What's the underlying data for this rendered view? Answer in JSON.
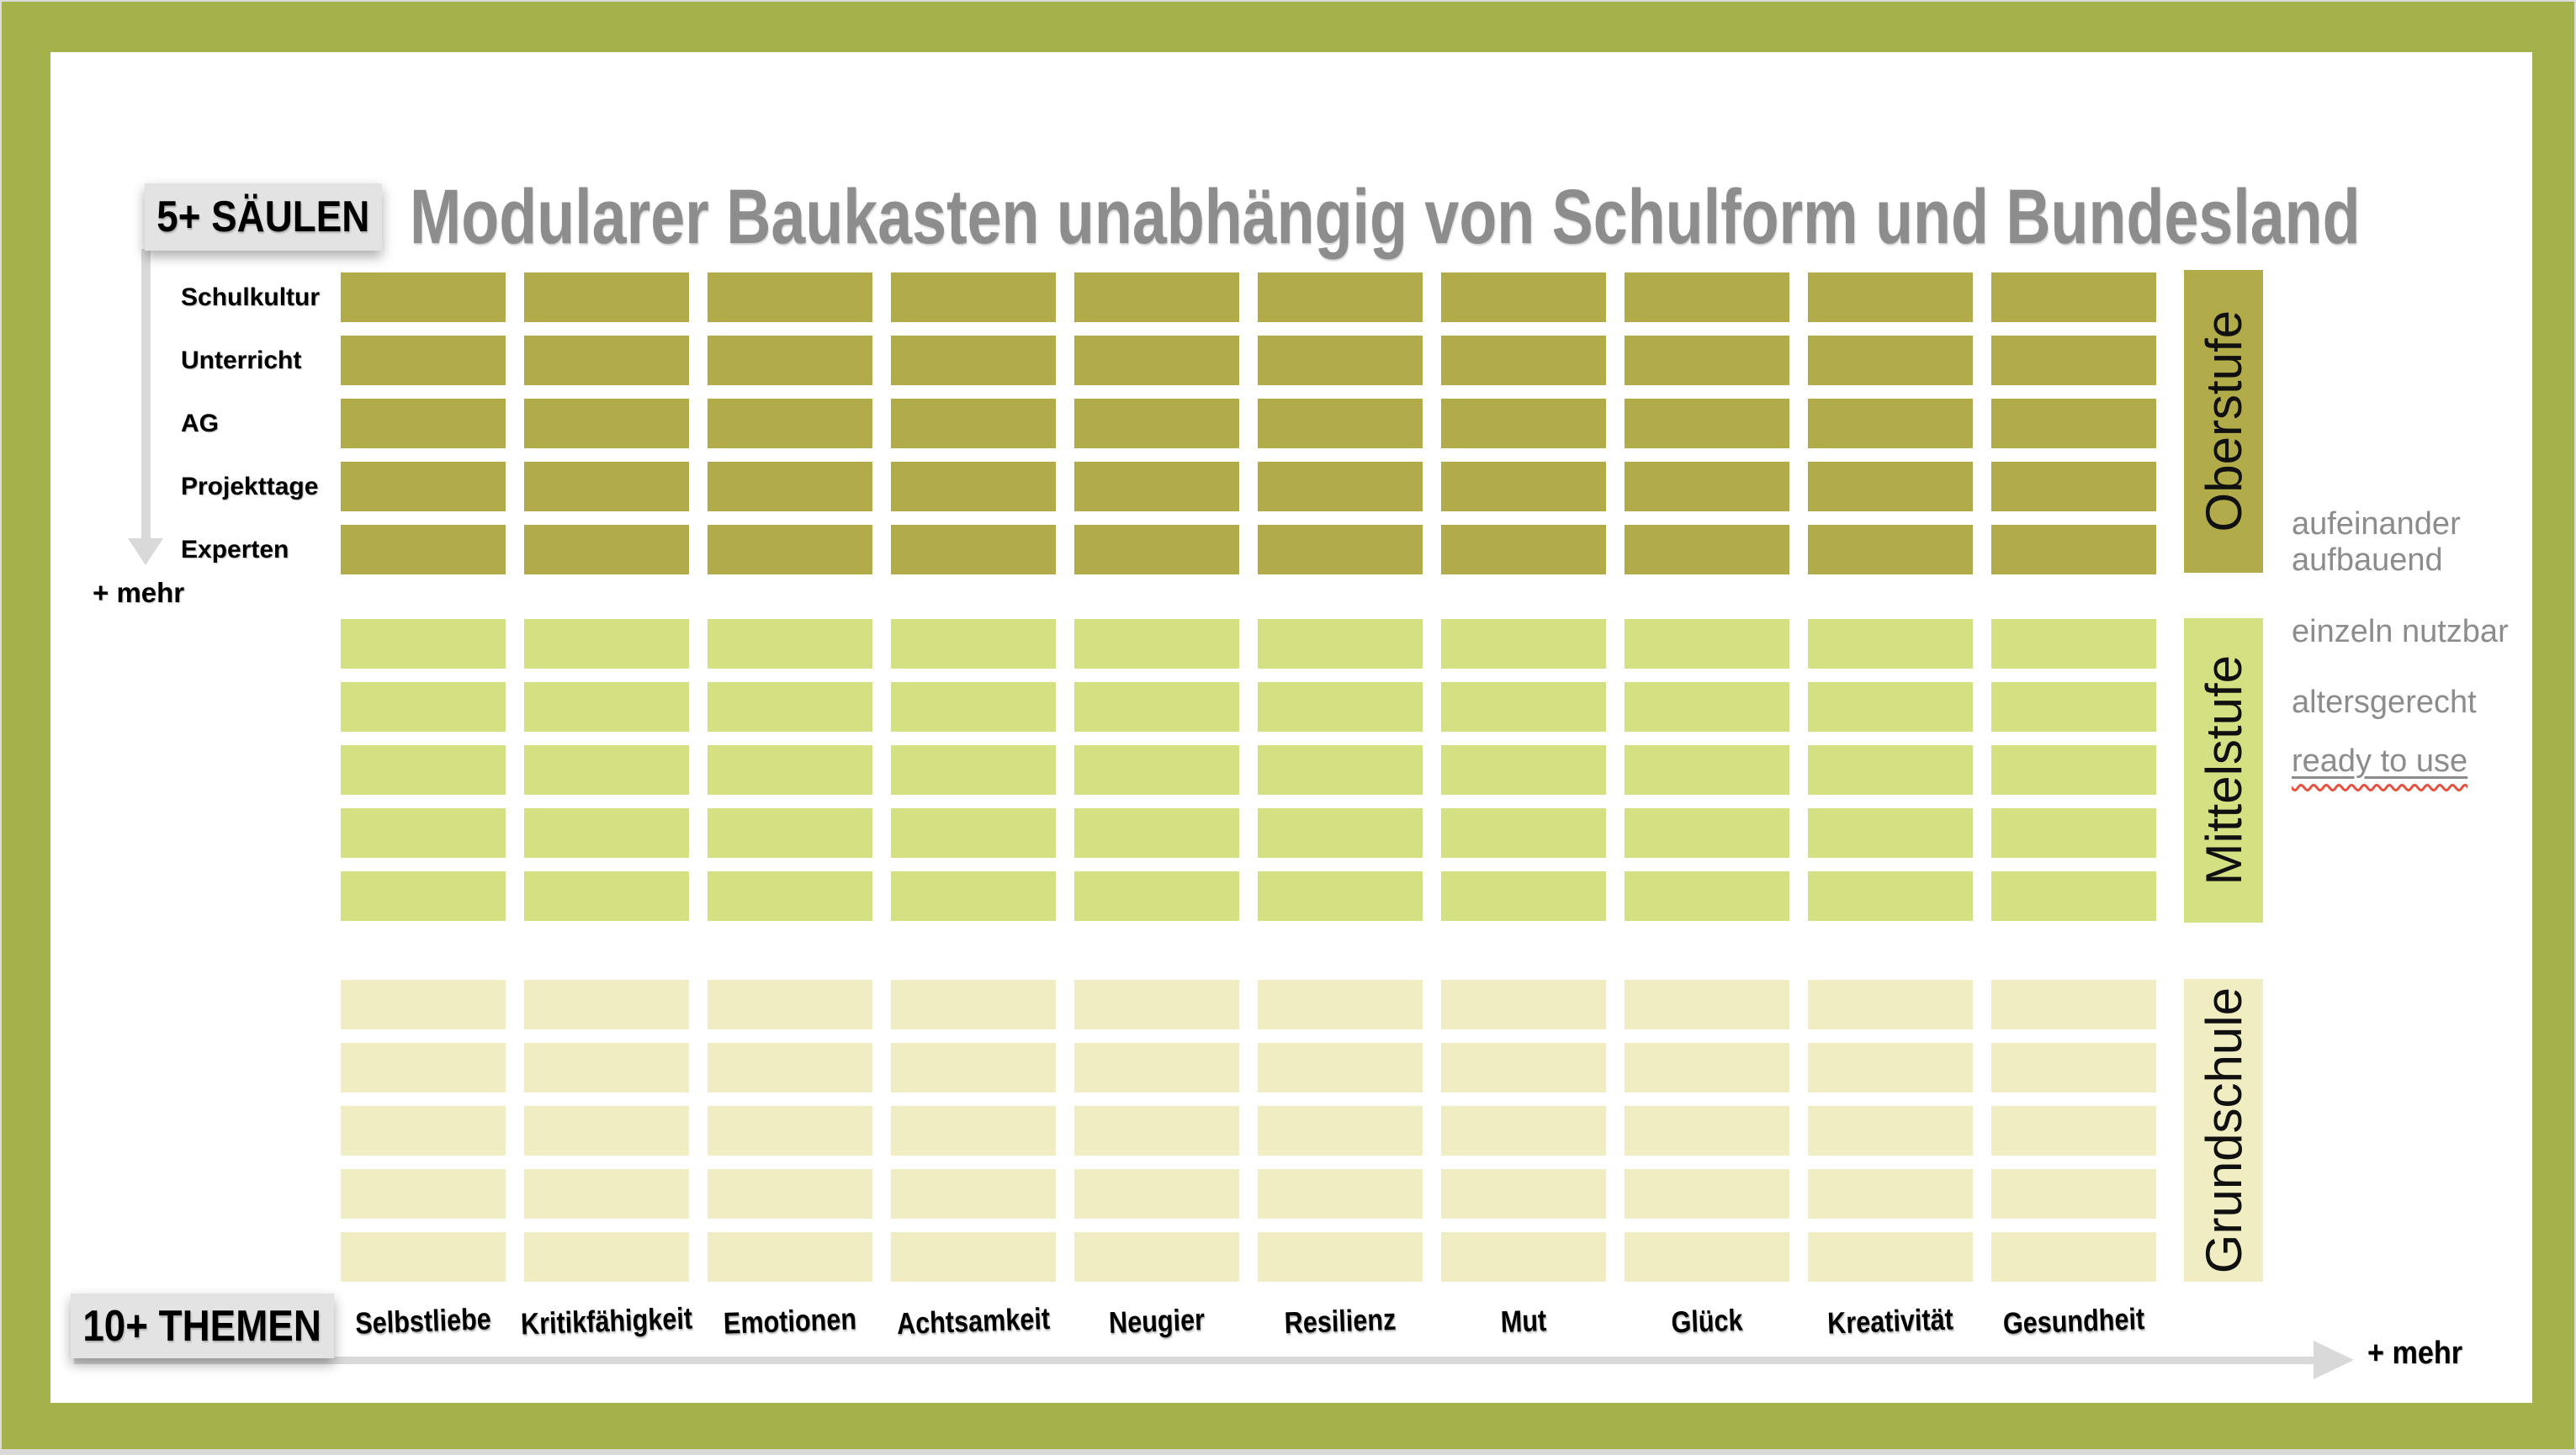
{
  "header": {
    "pillars_badge": "5+ SÄULEN",
    "title": "Modularer Baukasten unabhängig von Schulform und Bundesland"
  },
  "pillars": {
    "items": [
      "Schulkultur",
      "Unterricht",
      "AG",
      "Projekttage",
      "Experten"
    ],
    "more_label": "+ mehr"
  },
  "grid": {
    "rows_per_level": 5,
    "columns": 10
  },
  "levels": [
    {
      "name": "Oberstufe",
      "color": "#b1ab49"
    },
    {
      "name": "Mittelstufe",
      "color": "#d5e082"
    },
    {
      "name": "Grundschule",
      "color": "#f0edc2"
    }
  ],
  "annotations": {
    "items": [
      "aufeinander aufbauend",
      "einzeln nutzbar",
      "altersgerecht",
      "ready to use"
    ]
  },
  "themes": {
    "badge": "10+ THEMEN",
    "items": [
      "Selbstliebe",
      "Kritikfähigkeit",
      "Emotionen",
      "Achtsamkeit",
      "Neugier",
      "Resilienz",
      "Mut",
      "Glück",
      "Kreativität",
      "Gesundheit"
    ],
    "more_label": "+ mehr"
  },
  "colors": {
    "frame": "#a5b24b",
    "badge_background": "#e3e3e3",
    "arrow_gray": "#d9d9d9",
    "title_text": "#8d8d8d",
    "annotation_text": "#8c8c8c",
    "squiggle_red": "#e8503e"
  }
}
